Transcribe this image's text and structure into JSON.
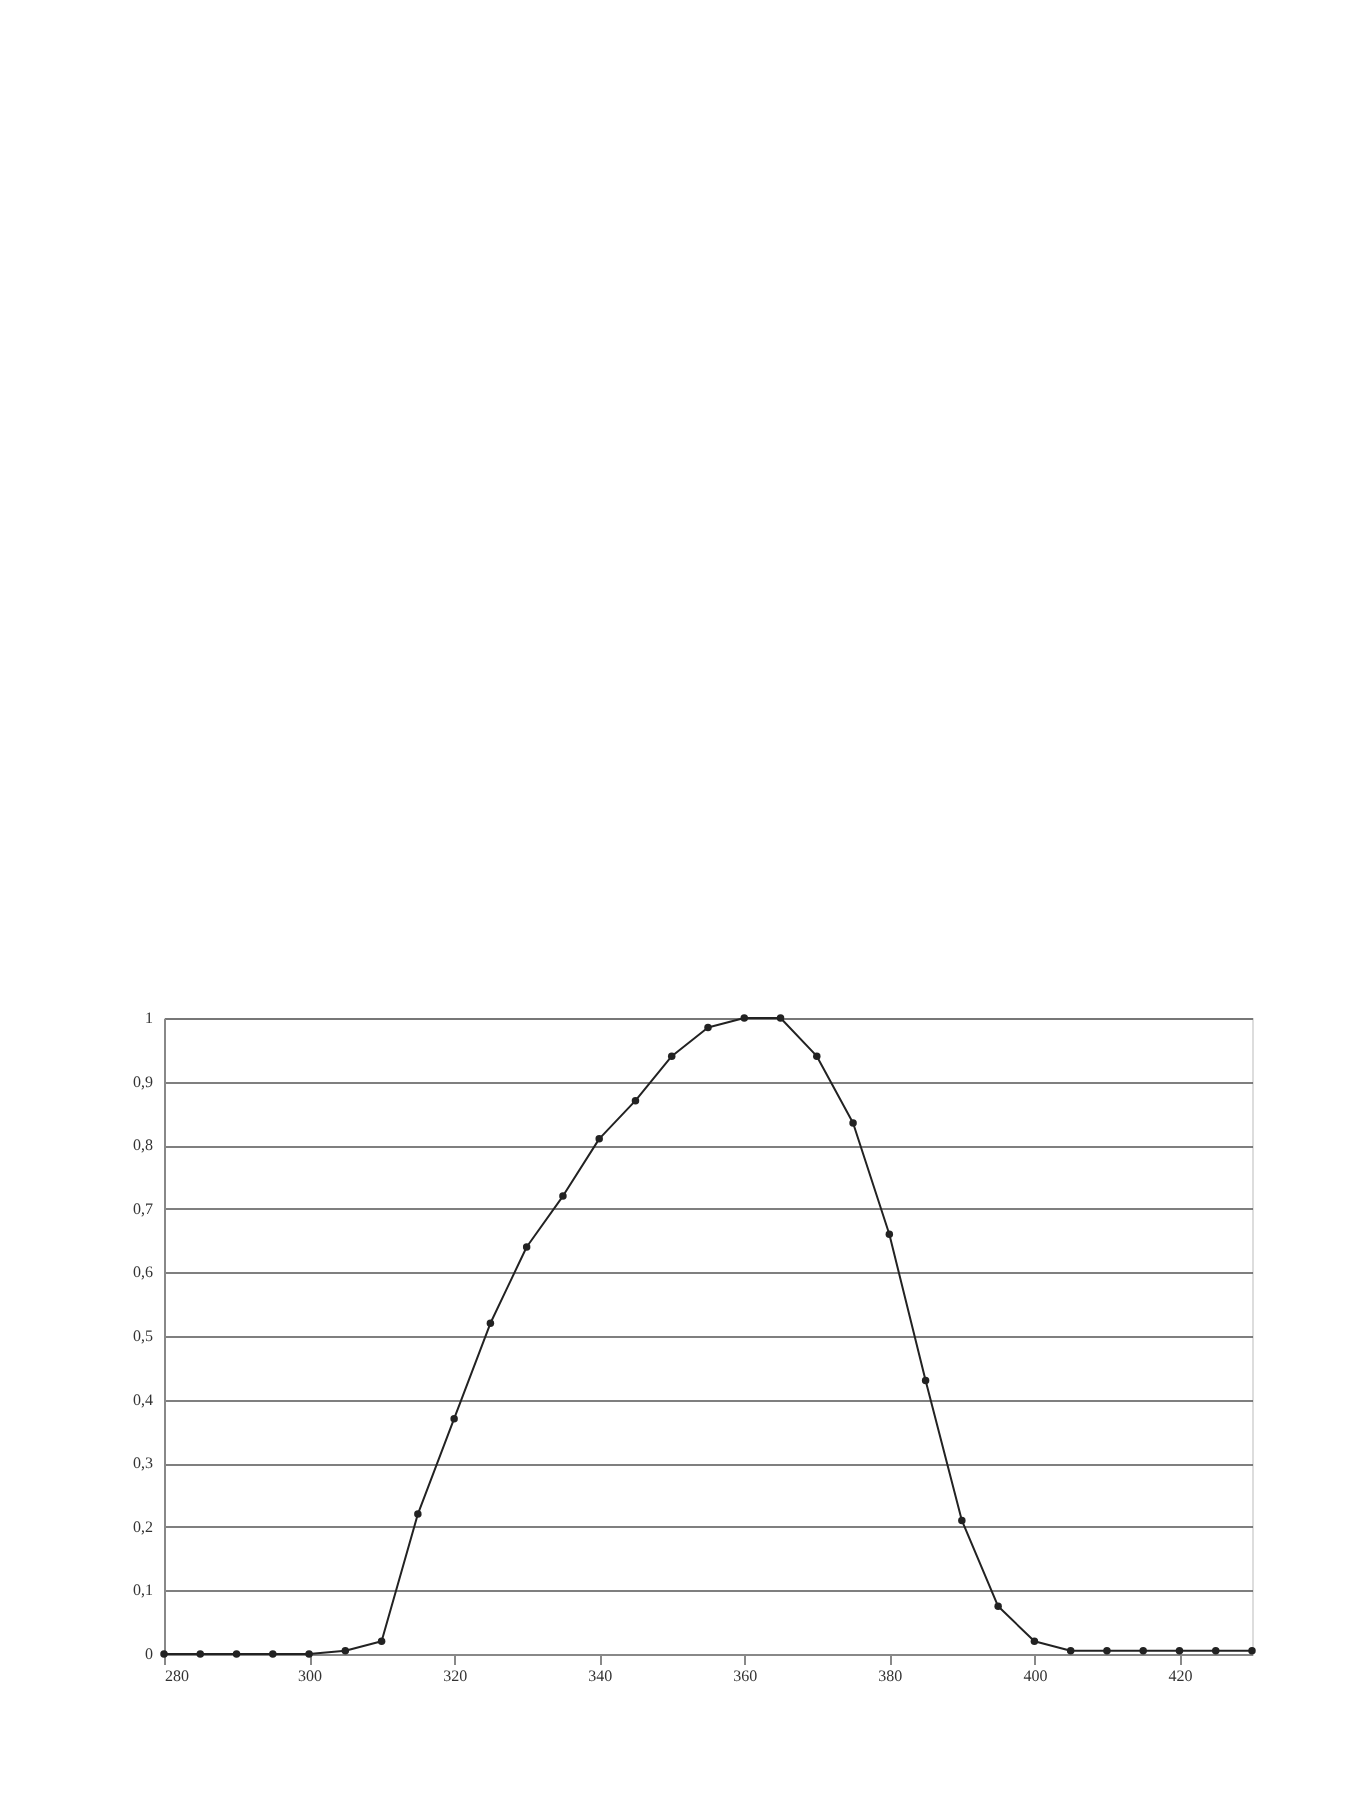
{
  "chart_data": {
    "type": "line",
    "x": [
      280,
      285,
      290,
      295,
      300,
      305,
      310,
      315,
      320,
      325,
      330,
      335,
      340,
      345,
      350,
      355,
      360,
      365,
      370,
      375,
      380,
      385,
      390,
      395,
      400,
      405,
      410,
      415,
      420,
      425,
      430
    ],
    "series": [
      {
        "color": "#222222",
        "values": [
          0,
          0,
          0,
          0,
          0,
          0.005,
          0.02,
          0.22,
          0.37,
          0.52,
          0.64,
          0.72,
          0.81,
          0.87,
          0.94,
          0.985,
          1,
          1,
          0.94,
          0.835,
          0.66,
          0.43,
          0.21,
          0.075,
          0.02,
          0.005,
          0.005,
          0.005,
          0.005,
          0.005,
          0.005
        ]
      }
    ],
    "xlim": [
      280,
      430
    ],
    "xticks": [
      280,
      300,
      320,
      340,
      360,
      380,
      400,
      420
    ],
    "ylim": [
      0,
      1
    ],
    "yticks": [
      {
        "value": 0,
        "label": "0"
      },
      {
        "value": 0.1,
        "label": "0,1"
      },
      {
        "value": 0.2,
        "label": "0,2"
      },
      {
        "value": 0.3,
        "label": "0,3"
      },
      {
        "value": 0.4,
        "label": "0,4"
      },
      {
        "value": 0.5,
        "label": "0,5"
      },
      {
        "value": 0.6,
        "label": "0,6"
      },
      {
        "value": 0.7,
        "label": "0,7"
      },
      {
        "value": 0.8,
        "label": "0,8"
      },
      {
        "value": 0.9,
        "label": "0,9"
      },
      {
        "value": 1,
        "label": "1"
      }
    ],
    "grid": "y",
    "marker": "circle",
    "line_style": "solid"
  }
}
